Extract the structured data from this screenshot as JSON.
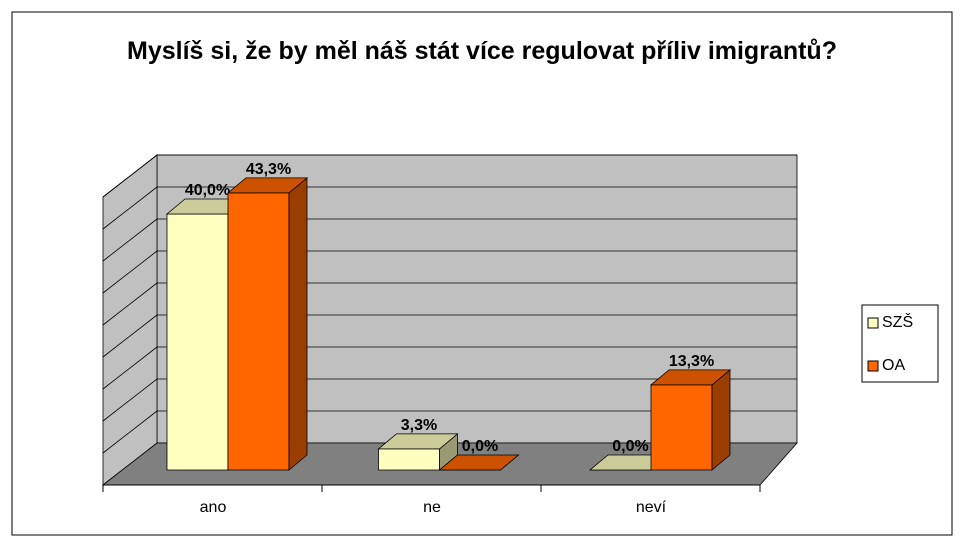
{
  "chart_data": {
    "type": "bar3d",
    "title": "Myslíš si, že by měl náš stát více regulovat příliv imigrantů?",
    "categories": [
      "ano",
      "ne",
      "neví"
    ],
    "series": [
      {
        "name": "SZŠ",
        "color": "#ffffc0",
        "values": [
          40.0,
          3.3,
          0.0
        ],
        "value_labels": [
          "40,0%",
          "3,3%",
          "0,0%"
        ]
      },
      {
        "name": "OA",
        "color": "#ff6600",
        "values": [
          43.3,
          0.0,
          13.3
        ],
        "value_labels": [
          "43,3%",
          "0,0%",
          "13,3%"
        ]
      }
    ],
    "ylim": [
      0,
      45
    ],
    "yticks": [
      0,
      5,
      10,
      15,
      20,
      25,
      30,
      35,
      40,
      45
    ],
    "grid": true,
    "legend": "right"
  }
}
